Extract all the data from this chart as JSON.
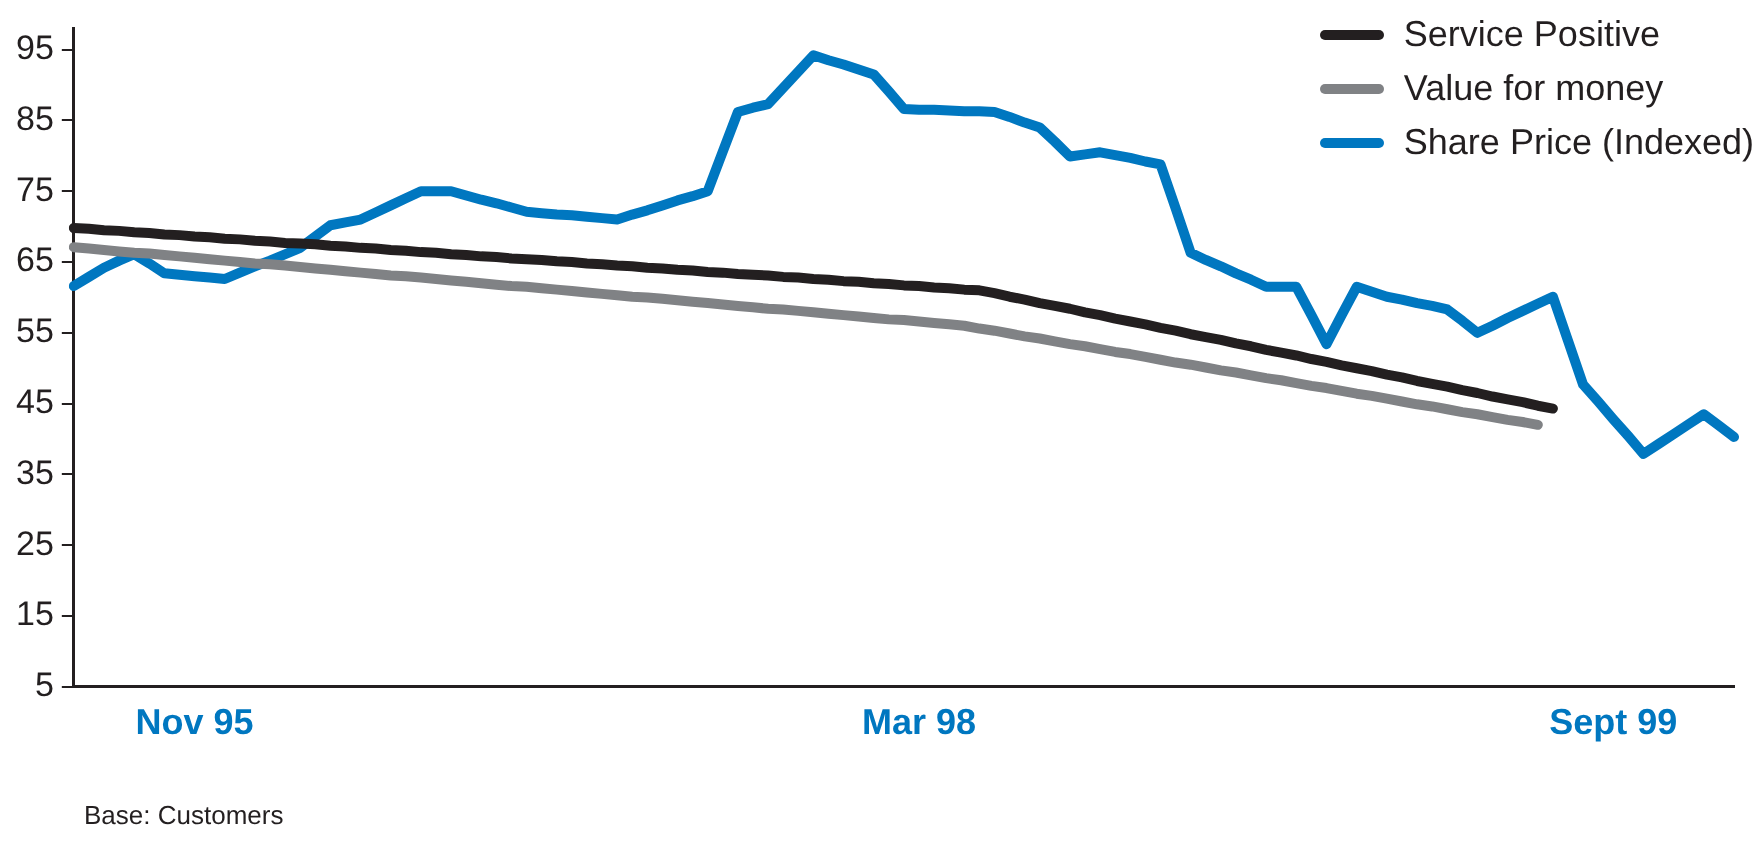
{
  "chart_data": {
    "type": "line",
    "categories": [
      null,
      null,
      null,
      null,
      null,
      null,
      null,
      null,
      "Nov 95",
      null,
      null,
      null,
      null,
      null,
      null,
      null,
      null,
      null,
      null,
      null,
      null,
      null,
      null,
      null,
      null,
      null,
      null,
      null,
      null,
      null,
      null,
      null,
      null,
      null,
      null,
      null,
      null,
      null,
      null,
      null,
      null,
      null,
      null,
      null,
      null,
      null,
      null,
      null,
      null,
      null,
      null,
      null,
      null,
      null,
      null,
      null,
      "Mar 98",
      null,
      null,
      null,
      null,
      null,
      null,
      null,
      null,
      null,
      null,
      null,
      null,
      null,
      null,
      null,
      null,
      null,
      null,
      null,
      null,
      null,
      null,
      null,
      null,
      null,
      null,
      null,
      null,
      null,
      null,
      null,
      null,
      null,
      null,
      null,
      null,
      null,
      null,
      null,
      null,
      null,
      null,
      null,
      null,
      null,
      "Sept 99",
      null,
      null,
      null,
      null,
      null,
      null,
      null,
      null
    ],
    "ylim": [
      5,
      98
    ],
    "yticks": [
      5,
      15,
      25,
      35,
      45,
      55,
      65,
      75,
      85,
      95
    ],
    "grid": false,
    "legend": "top right",
    "marker": "none",
    "line_style": "solid",
    "series": [
      {
        "name": "Service Positive",
        "color": "#231f20",
        "values": [
          69.8,
          69.7,
          69.5,
          69.4,
          69.2,
          69.1,
          68.9,
          68.8,
          68.6,
          68.5,
          68.3,
          68.2,
          68.0,
          67.9,
          67.7,
          67.6,
          67.5,
          67.3,
          67.2,
          67.0,
          66.9,
          66.7,
          66.6,
          66.4,
          66.3,
          66.1,
          66.0,
          65.8,
          65.7,
          65.5,
          65.4,
          65.3,
          65.1,
          65.0,
          64.8,
          64.7,
          64.5,
          64.4,
          64.2,
          64.1,
          63.9,
          63.8,
          63.6,
          63.5,
          63.3,
          63.2,
          63.1,
          62.9,
          62.8,
          62.6,
          62.5,
          62.3,
          62.2,
          62.0,
          61.9,
          61.7,
          61.6,
          61.4,
          61.3,
          61.1,
          61.0,
          60.6,
          60.1,
          59.7,
          59.2,
          58.8,
          58.4,
          57.9,
          57.5,
          57.0,
          56.6,
          56.2,
          55.7,
          55.3,
          54.8,
          54.4,
          54.0,
          53.5,
          53.1,
          52.6,
          52.2,
          51.8,
          51.3,
          50.9,
          50.4,
          50.0,
          49.6,
          49.1,
          48.7,
          48.2,
          47.8,
          47.4,
          46.9,
          46.5,
          46.0,
          45.6,
          45.2,
          44.7,
          44.3,
          null,
          null,
          null,
          null,
          null,
          null,
          null,
          null,
          null,
          null,
          null,
          null
        ]
      },
      {
        "name": "Value for money",
        "color": "#808285",
        "values": [
          67.1,
          66.9,
          66.7,
          66.5,
          66.3,
          66.2,
          66.0,
          65.8,
          65.6,
          65.4,
          65.2,
          65.0,
          64.8,
          64.7,
          64.5,
          64.3,
          64.1,
          63.9,
          63.7,
          63.5,
          63.3,
          63.1,
          63.0,
          62.8,
          62.6,
          62.4,
          62.2,
          62.0,
          61.8,
          61.6,
          61.5,
          61.3,
          61.1,
          60.9,
          60.7,
          60.5,
          60.3,
          60.1,
          60.0,
          59.8,
          59.6,
          59.4,
          59.2,
          59.0,
          58.8,
          58.6,
          58.4,
          58.3,
          58.1,
          57.9,
          57.7,
          57.5,
          57.3,
          57.1,
          56.9,
          56.8,
          56.6,
          56.4,
          56.2,
          56.0,
          55.6,
          55.3,
          54.9,
          54.5,
          54.2,
          53.8,
          53.4,
          53.1,
          52.7,
          52.3,
          52.0,
          51.6,
          51.2,
          50.8,
          50.5,
          50.1,
          49.7,
          49.4,
          49.0,
          48.6,
          48.3,
          47.9,
          47.5,
          47.2,
          46.8,
          46.4,
          46.1,
          45.7,
          45.3,
          44.9,
          44.6,
          44.2,
          43.8,
          43.5,
          43.1,
          42.7,
          42.4,
          42.0,
          null,
          null,
          null,
          null,
          null,
          null,
          null,
          null,
          null,
          null,
          null,
          null,
          null
        ]
      },
      {
        "name": "Share Price (Indexed)",
        "color": "#0077c0",
        "values": [
          61.6,
          62.9,
          64.2,
          65.2,
          66.1,
          64.8,
          63.4,
          63.2,
          63.0,
          62.8,
          62.6,
          63.5,
          64.4,
          65.2,
          66.1,
          67,
          68.6,
          70.2,
          70.6,
          71,
          72,
          73,
          74,
          75,
          75,
          75,
          74.4,
          73.8,
          73.3,
          72.7,
          72.1,
          71.9,
          71.7,
          71.6,
          71.4,
          71.2,
          71,
          71.7,
          72.3,
          73,
          73.7,
          74.3,
          75,
          80.6,
          86.2,
          86.8,
          87.3,
          89.6,
          91.9,
          94.2,
          93.5,
          92.9,
          92.2,
          91.5,
          89.1,
          86.6,
          86.5,
          86.5,
          86.4,
          86.3,
          86.3,
          86.2,
          85.5,
          84.7,
          84,
          82,
          79.9,
          80.2,
          80.5,
          80.1,
          79.7,
          79.2,
          78.8,
          72.6,
          66.3,
          65.3,
          64.4,
          63.4,
          62.5,
          61.5,
          61.5,
          61.5,
          57.5,
          53.4,
          57.5,
          61.5,
          60.8,
          60.1,
          59.7,
          59.2,
          58.8,
          58.3,
          56.7,
          55,
          56,
          57.1,
          58.1,
          59.1,
          60.1,
          53.9,
          47.7,
          45.3,
          42.8,
          40.4,
          37.9,
          39.3,
          40.7,
          42.1,
          43.5,
          41.9,
          40.3
        ]
      }
    ],
    "annotations": [
      "Base: Customers"
    ]
  }
}
